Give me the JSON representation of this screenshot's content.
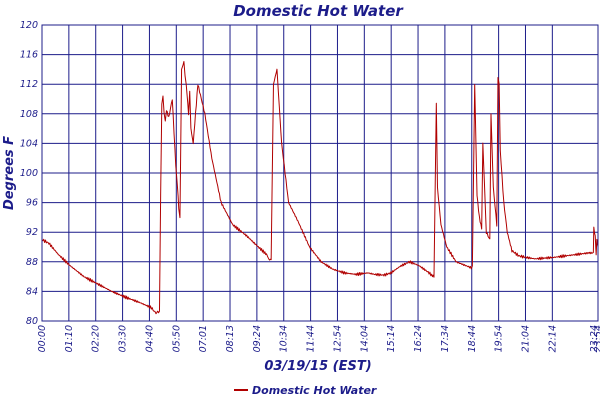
{
  "chart_data": {
    "type": "line",
    "title": "Domestic Hot Water",
    "xlabel": "03/19/15 (EST)",
    "ylabel": "Degrees F",
    "ylim": [
      80,
      120
    ],
    "yticks": [
      80,
      84,
      88,
      92,
      96,
      100,
      104,
      108,
      112,
      116,
      120
    ],
    "xlim_hours": [
      0,
      23.9
    ],
    "xtick_labels": [
      "00:00",
      "01:10",
      "02:20",
      "03:30",
      "04:40",
      "05:50",
      "07:01",
      "08:13",
      "09:24",
      "10:34",
      "11:44",
      "12:54",
      "14:04",
      "15:14",
      "16:24",
      "17:34",
      "18:44",
      "19:54",
      "21:04",
      "22:14",
      "23:24",
      "23:54"
    ],
    "grid": true,
    "legend_position": "bottom-center",
    "series": [
      {
        "name": "Domestic Hot Water",
        "color": "#b00000",
        "x_hours": [
          0,
          0.3,
          0.7,
          1.2,
          1.8,
          2.4,
          3.0,
          3.6,
          4.2,
          4.7,
          4.85,
          4.9,
          4.97,
          5.05,
          5.1,
          5.15,
          5.2,
          5.25,
          5.3,
          5.35,
          5.45,
          5.6,
          5.75,
          5.85,
          5.88,
          5.93,
          6.0,
          6.1,
          6.15,
          6.2,
          6.3,
          6.35,
          6.4,
          6.5,
          6.7,
          7.0,
          7.3,
          7.7,
          8.2,
          8.8,
          9.3,
          9.65,
          9.7,
          9.75,
          9.85,
          9.95,
          10.1,
          10.3,
          10.6,
          11.0,
          11.5,
          12.0,
          12.5,
          13.0,
          13.5,
          14.0,
          14.3,
          14.7,
          15.0,
          15.4,
          15.8,
          16.2,
          16.6,
          16.75,
          16.85,
          16.95,
          17.0,
          17.15,
          17.4,
          17.8,
          18.2,
          18.45,
          18.5,
          18.6,
          18.7,
          18.8,
          18.9,
          18.95,
          19.05,
          19.1,
          19.25,
          19.3,
          19.4,
          19.55,
          19.6,
          19.65,
          19.7,
          19.85,
          20.0,
          20.2,
          20.5,
          20.8,
          21.2,
          21.6,
          22.0,
          22.5,
          23.0,
          23.5,
          23.7,
          23.72,
          23.78,
          23.82,
          23.85,
          23.9
        ],
        "values": [
          91,
          90.5,
          89,
          87.5,
          86,
          85,
          84,
          83.2,
          82.5,
          81.8,
          81.2,
          81,
          81.3,
          81.2,
          97,
          109.5,
          110.5,
          108,
          107,
          108.5,
          107.5,
          110,
          101,
          97,
          95,
          94,
          114,
          115,
          113,
          112,
          108,
          111,
          106,
          104,
          112,
          108,
          102,
          96,
          93,
          91.5,
          90,
          89,
          88.5,
          88.3,
          88.3,
          112,
          114,
          104,
          96,
          93.5,
          90,
          88,
          87,
          86.5,
          86.3,
          86.5,
          86.3,
          86.2,
          86.5,
          87.4,
          88,
          87.5,
          86.6,
          86.2,
          86.0,
          109.5,
          98,
          93,
          90,
          88,
          87.5,
          87.2,
          87.5,
          112,
          97,
          94,
          92.5,
          104,
          96,
          92,
          91,
          108,
          98,
          93,
          113,
          112,
          103,
          96,
          92,
          89.5,
          88.8,
          88.6,
          88.4,
          88.5,
          88.6,
          88.8,
          89,
          89.2,
          89.2,
          92.5,
          91.5,
          89,
          91,
          90
        ],
        "fine_variation": "sensor noise"
      }
    ]
  },
  "legend": {
    "entries": [
      "Domestic Hot Water"
    ]
  }
}
